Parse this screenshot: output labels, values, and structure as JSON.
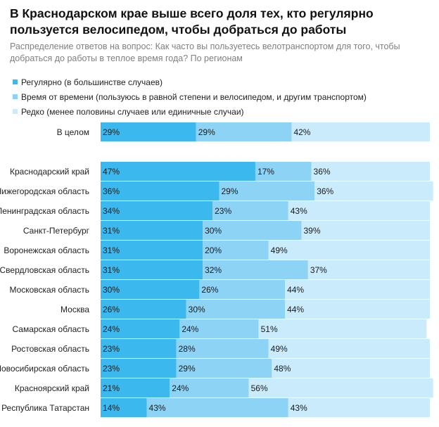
{
  "title": "В Краснодарском крае выше всего доля тех, кто регулярно пользуется велосипедом, чтобы добраться до работы",
  "subtitle": "Распределение ответов на вопрос: Как часто вы пользуетесь велотранспортом для того, чтобы добраться до работы в теплое время года? По регионам",
  "colors": {
    "regular": "#3bb8ee",
    "sometimes": "#8dd3f6",
    "rarely": "#c9ebfb"
  },
  "chart_data": {
    "type": "bar",
    "orientation": "horizontal",
    "stacked": true,
    "unit": "%",
    "xlim": [
      0,
      100
    ],
    "legend_position": "top-left",
    "grid": false,
    "categories": [
      "В целом",
      "Краснодарский край",
      "Нижегородская область",
      "Ленинградская область",
      "Санкт-Петербург",
      "Воронежская область",
      "Свердловская область",
      "Московская область",
      "Москва",
      "Самарская область",
      "Ростовская область",
      "Новосибирская область",
      "Красноярский край",
      "Республика Татарстан"
    ],
    "series": [
      {
        "name": "Регулярно (в большинстве случаев)",
        "values": [
          29,
          47,
          36,
          34,
          31,
          31,
          31,
          30,
          26,
          24,
          23,
          23,
          21,
          14
        ]
      },
      {
        "name": "Время от времени (пользуюсь в равной степени и велосипедом, и другим транспортом)",
        "values": [
          29,
          17,
          29,
          23,
          30,
          20,
          32,
          26,
          30,
          24,
          28,
          29,
          24,
          43
        ]
      },
      {
        "name": "Редко (менее половины случаев или единичные случаи)",
        "values": [
          42,
          36,
          36,
          43,
          39,
          49,
          37,
          44,
          44,
          51,
          49,
          48,
          56,
          43
        ]
      }
    ]
  }
}
